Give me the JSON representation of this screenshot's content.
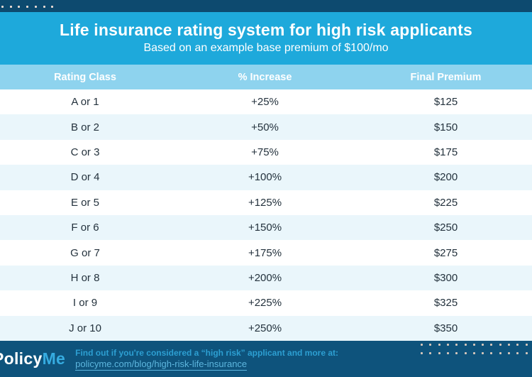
{
  "header": {
    "title": "Life insurance rating system for high risk applicants",
    "subtitle": "Based on an example base premium of $100/mo"
  },
  "chart_data": {
    "type": "table",
    "title": "Life insurance rating system for high risk applicants",
    "subtitle": "Based on an example base premium of $100/mo",
    "base_premium": "$100/mo",
    "columns": [
      "Rating Class",
      "% Increase",
      "Final Premium"
    ],
    "rows": [
      [
        "A or 1",
        "+25%",
        "$125"
      ],
      [
        "B or 2",
        "+50%",
        "$150"
      ],
      [
        "C or 3",
        "+75%",
        "$175"
      ],
      [
        "D or 4",
        "+100%",
        "$200"
      ],
      [
        "E or 5",
        "+125%",
        "$225"
      ],
      [
        "F or 6",
        "+150%",
        "$250"
      ],
      [
        "G or 7",
        "+175%",
        "$275"
      ],
      [
        "H or 8",
        "+200%",
        "$300"
      ],
      [
        "I or 9",
        "+225%",
        "$325"
      ],
      [
        "J or 10",
        "+250%",
        "$350"
      ]
    ]
  },
  "footer": {
    "logo_policy": "Policy",
    "logo_me": "Me",
    "cta_line": "Find out if you're considered a “high risk” applicant and more at:",
    "link": "policyme.com/blog/high-risk-life-insurance"
  },
  "colors": {
    "accent_blue": "#1ea9db",
    "top_strip_navy": "#0d4a6f",
    "footer_navy": "#0e537c",
    "table_header_blue": "#8ed3ee",
    "zebra_row_blue": "#eaf6fb",
    "cell_text": "#24323d",
    "logo_me_blue": "#36ace1",
    "cta_text_blue": "#2d9fd2",
    "link_blue": "#5db6de",
    "dot_top": "#ecdcd4",
    "dot_footer": "#d9c8bc"
  }
}
